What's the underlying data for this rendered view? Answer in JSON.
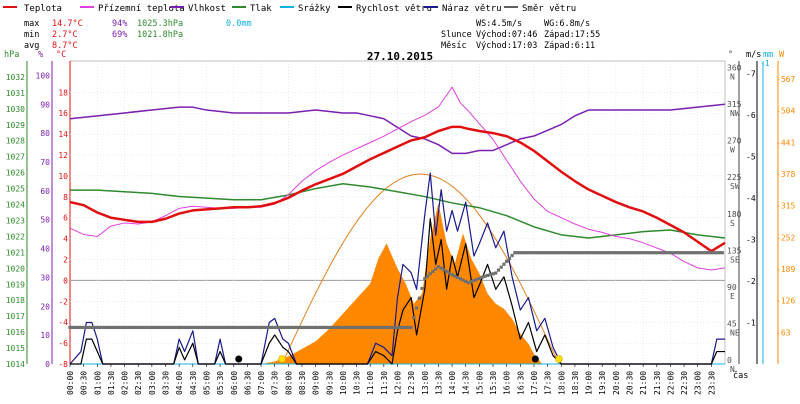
{
  "legend": [
    {
      "label": "Teplota",
      "color": "#e01010"
    },
    {
      "label": "Přízemní teplota",
      "color": "#e040e0"
    },
    {
      "label": "Vlhkost",
      "color": "#7a1fb0"
    },
    {
      "label": "Tlak",
      "color": "#2e8a2e"
    },
    {
      "label": "Srážky",
      "color": "#10b0e0"
    },
    {
      "label": "Rychlost větru",
      "color": "#000000"
    },
    {
      "label": "Náraz větru",
      "color": "#1a1a8a"
    },
    {
      "label": "Směr větru",
      "color": "#606060"
    }
  ],
  "stats": {
    "max": {
      "label": "max",
      "temp": "14.7°C",
      "hum": "94%",
      "press": "1025.3hPa",
      "rain": "0.0mm"
    },
    "min": {
      "label": "min",
      "temp": "2.7°C",
      "hum": "69%",
      "press": "1021.8hPa"
    },
    "avg": {
      "label": "avg",
      "temp": "8.7°C"
    }
  },
  "wind_info": {
    "ws": "WS:4.5m/s",
    "wg": "WG:6.8m/s"
  },
  "sun": {
    "label": "Slunce",
    "rise": "Východ:07:46",
    "set": "Západ:17:55"
  },
  "moon": {
    "label": "Měsíc",
    "rise": "Východ:17:03",
    "set": "Západ:6:11"
  },
  "date": "27.10.2015",
  "axes": {
    "hpa_title": "hPa",
    "pct_title": "%",
    "c_title": "°C",
    "deg_title": "°",
    "ms_title": "m/s",
    "mm_title": "mm",
    "wm_title": "W",
    "time_label": "čas"
  },
  "colors": {
    "temp": "#e01010",
    "ground": "#e040e0",
    "hum": "#7a1fb0",
    "press": "#2e8a2e",
    "rain": "#10b0e0",
    "wind": "#000000",
    "gust": "#1a1a8a",
    "dir": "#707070",
    "solar": "#ff8800",
    "sunarc": "#e08020"
  },
  "chart_data": {
    "type": "line",
    "title": "27.10.2015",
    "x_unit": "time of day (hours)",
    "xlim": [
      0,
      24
    ],
    "x_tick_labels": [
      "00:00",
      "00:30",
      "01:00",
      "01:30",
      "02:00",
      "02:30",
      "03:00",
      "03:30",
      "04:00",
      "04:30",
      "05:00",
      "05:30",
      "06:00",
      "06:30",
      "07:00",
      "07:30",
      "08:00",
      "08:30",
      "09:00",
      "09:30",
      "10:00",
      "10:30",
      "11:00",
      "11:30",
      "12:00",
      "12:30",
      "13:00",
      "13:30",
      "14:00",
      "14:30",
      "15:00",
      "15:30",
      "16:00",
      "16:30",
      "17:00",
      "17:30",
      "18:00",
      "18:30",
      "19:00",
      "19:30",
      "20:00",
      "20:30",
      "21:00",
      "21:30",
      "22:00",
      "22:30",
      "23:00",
      "23:30"
    ],
    "axes": {
      "pressure_hpa": {
        "range": [
          1014,
          1033
        ],
        "ticks": [
          1014,
          1015,
          1016,
          1017,
          1018,
          1019,
          1020,
          1021,
          1022,
          1023,
          1024,
          1025,
          1026,
          1027,
          1028,
          1029,
          1030,
          1031,
          1032
        ]
      },
      "humidity_pct": {
        "range": [
          0,
          105
        ],
        "ticks": [
          0,
          10,
          20,
          30,
          40,
          50,
          60,
          70,
          80,
          90,
          100
        ]
      },
      "temp_c": {
        "range": [
          -8,
          21
        ],
        "ticks": [
          -8,
          -6,
          -4,
          -2,
          0,
          2,
          4,
          6,
          8,
          10,
          12,
          14,
          16,
          18
        ]
      },
      "direction_deg": {
        "range": [
          0,
          373
        ],
        "ticks": [
          0,
          45,
          90,
          135,
          180,
          225,
          270,
          315,
          360
        ],
        "labels": [
          "N",
          "NE",
          "E",
          "SE",
          "S",
          "SW",
          "W",
          "NW",
          "N"
        ]
      },
      "wind_ms": {
        "range": [
          0,
          7.3
        ],
        "ticks": [
          1,
          2,
          3,
          4,
          5,
          6,
          7
        ]
      },
      "rain_mm": {
        "ticks": [
          1
        ]
      },
      "solar_wm2": {
        "range": [
          0,
          603
        ],
        "ticks": [
          63,
          126,
          189,
          252,
          315,
          378,
          441,
          504,
          567
        ]
      }
    },
    "series": [
      {
        "name": "Teplota",
        "axis": "temp_c",
        "x": [
          0,
          0.5,
          1,
          1.5,
          2,
          2.5,
          3,
          3.5,
          4,
          4.5,
          5,
          5.5,
          6,
          6.5,
          7,
          7.5,
          8,
          8.5,
          9,
          9.5,
          10,
          10.5,
          11,
          11.5,
          12,
          12.5,
          13,
          13.5,
          14,
          14.3,
          14.6,
          15,
          15.5,
          16,
          16.5,
          17,
          17.5,
          18,
          18.5,
          19,
          19.5,
          20,
          20.5,
          21,
          21.5,
          22,
          22.5,
          23,
          23.5,
          24
        ],
        "y": [
          7.5,
          7.2,
          6.5,
          6.0,
          5.8,
          5.6,
          5.6,
          5.9,
          6.4,
          6.7,
          6.8,
          6.9,
          7.0,
          7.0,
          7.1,
          7.4,
          7.9,
          8.6,
          9.2,
          9.7,
          10.2,
          10.9,
          11.6,
          12.2,
          12.8,
          13.4,
          13.7,
          14.3,
          14.7,
          14.7,
          14.5,
          14.3,
          14.1,
          13.8,
          13.2,
          12.4,
          11.4,
          10.4,
          9.5,
          8.7,
          8.1,
          7.5,
          7.0,
          6.6,
          6.0,
          5.3,
          4.6,
          3.7,
          2.8,
          3.6
        ]
      },
      {
        "name": "Přízemní teplota",
        "axis": "temp_c",
        "x": [
          0,
          0.5,
          1,
          1.5,
          2,
          2.5,
          3,
          3.5,
          4,
          4.5,
          5,
          5.5,
          6,
          6.5,
          7,
          7.5,
          8,
          8.5,
          9,
          9.5,
          10,
          10.5,
          11,
          11.5,
          12,
          12.5,
          13,
          13.5,
          14,
          14.3,
          14.6,
          15,
          15.5,
          16,
          16.5,
          17,
          17.5,
          18,
          18.5,
          19,
          19.5,
          20,
          20.5,
          21,
          21.5,
          22,
          22.5,
          23,
          23.5,
          24
        ],
        "y": [
          5.0,
          4.4,
          4.2,
          5.2,
          5.5,
          5.4,
          5.6,
          6.2,
          6.9,
          7.1,
          7.0,
          6.9,
          6.9,
          7.0,
          7.0,
          7.3,
          8.2,
          9.5,
          10.5,
          11.3,
          12.0,
          12.6,
          13.2,
          13.8,
          14.5,
          15.2,
          15.8,
          16.6,
          18.5,
          17.0,
          16.2,
          15.0,
          13.5,
          11.5,
          9.5,
          7.8,
          6.6,
          6.0,
          5.4,
          4.9,
          4.6,
          4.2,
          4.0,
          3.6,
          3.1,
          2.6,
          1.8,
          1.2,
          1.0,
          1.2
        ]
      },
      {
        "name": "Vlhkost",
        "axis": "humidity_pct",
        "x": [
          0,
          1,
          2,
          3,
          4,
          4.5,
          5,
          6,
          7,
          8,
          9,
          10,
          10.5,
          11,
          11.5,
          12,
          12.5,
          13,
          13.5,
          14,
          14.5,
          15,
          15.5,
          16,
          16.5,
          17,
          17.5,
          18,
          18.5,
          19,
          20,
          21,
          22,
          23,
          24
        ],
        "y": [
          85,
          86,
          87,
          88,
          89,
          89,
          88,
          87,
          87,
          87,
          88,
          87,
          87,
          86,
          85,
          82,
          79,
          78,
          76,
          73,
          73,
          74,
          74,
          76,
          78,
          79,
          81,
          83,
          86,
          88,
          88,
          88,
          88,
          89,
          90
        ]
      },
      {
        "name": "Tlak",
        "axis": "pressure_hpa",
        "x": [
          0,
          1,
          2,
          3,
          4,
          5,
          6,
          7,
          8,
          9,
          10,
          11,
          12,
          13,
          14,
          15,
          16,
          17,
          18,
          19,
          20,
          21,
          22,
          23,
          24
        ],
        "y": [
          1024.9,
          1024.9,
          1024.8,
          1024.7,
          1024.5,
          1024.4,
          1024.3,
          1024.3,
          1024.6,
          1025.0,
          1025.3,
          1025.1,
          1024.8,
          1024.5,
          1024.1,
          1023.8,
          1023.3,
          1022.6,
          1022.1,
          1021.9,
          1022.1,
          1022.3,
          1022.4,
          1022.1,
          1021.9
        ]
      },
      {
        "name": "Rychlost větru",
        "axis": "wind_ms",
        "x": [
          0,
          0.4,
          0.6,
          0.8,
          1.0,
          1.2,
          3.8,
          4.0,
          4.2,
          4.5,
          4.7,
          5.3,
          5.5,
          5.7,
          6.0,
          7.0,
          7.3,
          7.5,
          7.8,
          8.0,
          8.3,
          10.9,
          11.2,
          11.5,
          11.8,
          12.0,
          12.2,
          12.5,
          12.7,
          13.0,
          13.2,
          13.4,
          13.6,
          13.8,
          14.0,
          14.2,
          14.5,
          14.8,
          15.0,
          15.3,
          15.6,
          15.9,
          16.2,
          16.5,
          16.8,
          17.1,
          17.4,
          17.7,
          18,
          23.5,
          23.7,
          24
        ],
        "y": [
          0,
          0,
          0.6,
          0.6,
          0.3,
          0,
          0,
          0.4,
          0.1,
          0.5,
          0,
          0,
          0.3,
          0,
          0,
          0,
          0.5,
          0.7,
          0.4,
          0.3,
          0,
          0,
          0.3,
          0.2,
          0,
          0.8,
          1.3,
          1.6,
          0.7,
          1.8,
          3.5,
          2.4,
          3.0,
          1.8,
          2.6,
          2.1,
          2.9,
          1.6,
          1.9,
          2.4,
          1.8,
          2.1,
          1.4,
          0.6,
          1.0,
          0.3,
          0.7,
          0.2,
          0,
          0,
          0.3,
          0.3
        ]
      },
      {
        "name": "Náraz větru",
        "axis": "wind_ms",
        "x": [
          0,
          0.4,
          0.6,
          0.8,
          1.0,
          1.2,
          3.8,
          4.0,
          4.2,
          4.5,
          4.7,
          5.3,
          5.5,
          5.7,
          6.0,
          7.0,
          7.3,
          7.5,
          7.8,
          8.0,
          8.3,
          10.9,
          11.2,
          11.5,
          11.8,
          12.0,
          12.2,
          12.5,
          12.7,
          13.0,
          13.2,
          13.4,
          13.6,
          13.8,
          14.0,
          14.2,
          14.5,
          14.8,
          15.0,
          15.3,
          15.6,
          15.9,
          16.2,
          16.5,
          16.8,
          17.1,
          17.4,
          17.7,
          18,
          23.5,
          23.7,
          24
        ],
        "y": [
          0,
          0.3,
          1.0,
          1.0,
          0.6,
          0,
          0,
          0.6,
          0.3,
          0.8,
          0,
          0,
          0.6,
          0,
          0,
          0,
          1.0,
          1.1,
          0.6,
          0.5,
          0,
          0,
          0.5,
          0.4,
          0.2,
          1.6,
          2.4,
          2.2,
          1.8,
          3.6,
          4.6,
          3.1,
          4.2,
          3.2,
          3.7,
          3.2,
          3.9,
          2.6,
          2.9,
          3.4,
          2.8,
          3.2,
          2.1,
          1.3,
          1.6,
          0.8,
          1.1,
          0.4,
          0,
          0,
          0.6,
          0.6
        ]
      },
      {
        "name": "Směr větru",
        "axis": "direction_deg",
        "x": [
          0,
          2,
          4,
          6,
          8,
          10,
          11.9,
          12.5,
          13.0,
          13.5,
          14.0,
          14.6,
          15.2,
          15.6,
          16.1,
          16.3,
          17,
          18,
          19,
          20,
          21,
          22,
          23,
          24
        ],
        "y": [
          45,
          45,
          45,
          45,
          45,
          45,
          45,
          45,
          105,
          120,
          110,
          100,
          108,
          112,
          130,
          137,
          137,
          137,
          137,
          137,
          137,
          137,
          137,
          137
        ]
      },
      {
        "name": "Sluneční záření",
        "axis": "solar_wm2",
        "x": [
          7.0,
          7.5,
          8.0,
          8.5,
          9.0,
          9.5,
          10.0,
          10.5,
          11.0,
          11.3,
          11.6,
          12.0,
          12.3,
          12.6,
          12.9,
          13.2,
          13.5,
          13.8,
          14.1,
          14.4,
          14.7,
          15.0,
          15.3,
          15.6,
          15.9,
          16.2,
          16.5,
          16.8,
          17.0,
          17.3
        ],
        "y": [
          0,
          5,
          15,
          30,
          45,
          70,
          100,
          130,
          160,
          210,
          240,
          190,
          160,
          120,
          140,
          250,
          320,
          240,
          200,
          260,
          210,
          180,
          140,
          120,
          110,
          90,
          60,
          40,
          20,
          0
        ]
      },
      {
        "name": "Srážky",
        "axis": "rain_mm",
        "x": [
          0,
          24
        ],
        "y": [
          0,
          0
        ]
      }
    ],
    "sun_markers": {
      "sunrise": "07:46",
      "sunset": "17:55"
    },
    "moon_markers": {
      "moonrise": "17:03",
      "moonset": "06:11"
    }
  }
}
